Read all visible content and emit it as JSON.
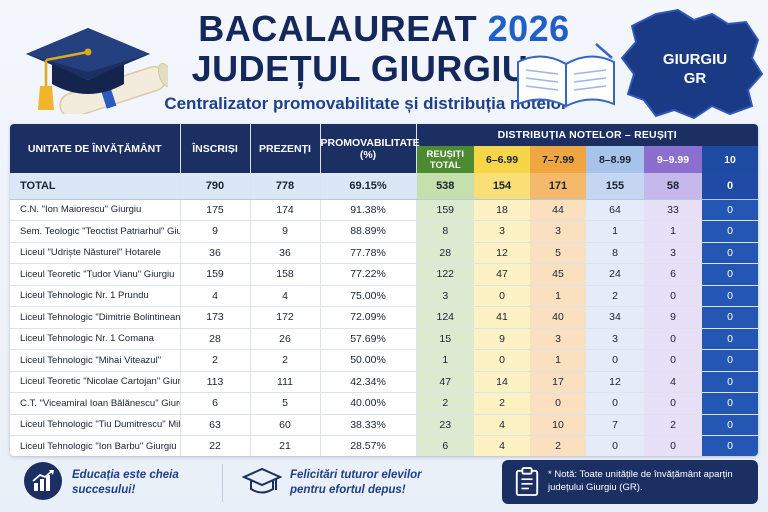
{
  "header": {
    "title_line1": "BACALAUREAT",
    "title_year": "2026",
    "title_line2": "JUDEȚUL GIURGIU",
    "subtitle": "Centralizator promovabilitate și distribuția notelor",
    "region_name": "GIURGIU",
    "region_code": "GR"
  },
  "table": {
    "columns": {
      "unit": "UNITATE DE ÎNVĂȚĂMÂNT",
      "enrolled": "ÎNSCRIȘI",
      "present": "PREZENȚI",
      "pass_rate": "PROMOVABILITATE (%)",
      "distribution": "DISTRIBUȚIA NOTELOR – REUȘIȚI",
      "passed_total": "REUȘIȚI TOTAL",
      "g6": "6–6.99",
      "g7": "7–7.99",
      "g8": "8–8.99",
      "g9": "9–9.99",
      "g10": "10"
    },
    "total": {
      "unit": "TOTAL",
      "enrolled": "790",
      "present": "778",
      "pass_rate": "69.15%",
      "passed": "538",
      "g6": "154",
      "g7": "171",
      "g8": "155",
      "g9": "58",
      "g10": "0"
    },
    "rows": [
      {
        "unit": "C.N. \"Ion Maiorescu\" Giurgiu",
        "enrolled": "175",
        "present": "174",
        "pass_rate": "91.38%",
        "passed": "159",
        "g6": "18",
        "g7": "44",
        "g8": "64",
        "g9": "33",
        "g10": "0"
      },
      {
        "unit": "Sem. Teologic \"Teoctist Patriarhul\" Giurgiu",
        "enrolled": "9",
        "present": "9",
        "pass_rate": "88.89%",
        "passed": "8",
        "g6": "3",
        "g7": "3",
        "g8": "1",
        "g9": "1",
        "g10": "0"
      },
      {
        "unit": "Liceul \"Udriște Năsturel\" Hotarele",
        "enrolled": "36",
        "present": "36",
        "pass_rate": "77.78%",
        "passed": "28",
        "g6": "12",
        "g7": "5",
        "g8": "8",
        "g9": "3",
        "g10": "0"
      },
      {
        "unit": "Liceul Teoretic \"Tudor Vianu\" Giurgiu",
        "enrolled": "159",
        "present": "158",
        "pass_rate": "77.22%",
        "passed": "122",
        "g6": "47",
        "g7": "45",
        "g8": "24",
        "g9": "6",
        "g10": "0"
      },
      {
        "unit": "Liceul Tehnologic Nr. 1 Prundu",
        "enrolled": "4",
        "present": "4",
        "pass_rate": "75.00%",
        "passed": "3",
        "g6": "0",
        "g7": "1",
        "g8": "2",
        "g9": "0",
        "g10": "0"
      },
      {
        "unit": "Liceul Tehnologic \"Dimitrie Bolintineanu\"",
        "enrolled": "173",
        "present": "172",
        "pass_rate": "72.09%",
        "passed": "124",
        "g6": "41",
        "g7": "40",
        "g8": "34",
        "g9": "9",
        "g10": "0"
      },
      {
        "unit": "Liceul Tehnologic Nr. 1 Comana",
        "enrolled": "28",
        "present": "26",
        "pass_rate": "57.69%",
        "passed": "15",
        "g6": "9",
        "g7": "3",
        "g8": "3",
        "g9": "0",
        "g10": "0"
      },
      {
        "unit": "Liceul Tehnologic \"Mihai Viteazul\"",
        "enrolled": "2",
        "present": "2",
        "pass_rate": "50.00%",
        "passed": "1",
        "g6": "0",
        "g7": "1",
        "g8": "0",
        "g9": "0",
        "g10": "0"
      },
      {
        "unit": "Liceul Teoretic \"Nicolae Cartojan\" Giurgiu",
        "enrolled": "113",
        "present": "111",
        "pass_rate": "42.34%",
        "passed": "47",
        "g6": "14",
        "g7": "17",
        "g8": "12",
        "g9": "4",
        "g10": "0"
      },
      {
        "unit": "C.T. \"Viceamiral Ioan Bălănescu\" Giurgiu",
        "enrolled": "6",
        "present": "5",
        "pass_rate": "40.00%",
        "passed": "2",
        "g6": "2",
        "g7": "0",
        "g8": "0",
        "g9": "0",
        "g10": "0"
      },
      {
        "unit": "Liceul Tehnologic \"Tiu Dumitrescu\" Mihăilești",
        "enrolled": "63",
        "present": "60",
        "pass_rate": "38.33%",
        "passed": "23",
        "g6": "4",
        "g7": "10",
        "g8": "7",
        "g9": "2",
        "g10": "0"
      },
      {
        "unit": "Liceul Tehnologic \"Ion Barbu\" Giurgiu",
        "enrolled": "22",
        "present": "21",
        "pass_rate": "28.57%",
        "passed": "6",
        "g6": "4",
        "g7": "2",
        "g8": "0",
        "g9": "0",
        "g10": "0"
      }
    ]
  },
  "footer": {
    "motto": "Educația este cheia succesului!",
    "congrats": "Felicitări tuturor elevilor pentru efortul depus!",
    "note": "* Notă: Toate unitățile de învățământ aparțin județului Giurgiu (GR)."
  },
  "colors": {
    "navy": "#1b2f63",
    "accent_blue": "#1f5fc8",
    "passed_green": "#4c8b32",
    "grade6_yellow": "#f7d548",
    "grade7_orange": "#f0a640",
    "grade8_lightblue": "#a8c3ea",
    "grade9_purple": "#8a6fcf",
    "grade10_blue": "#1d4ba3"
  },
  "icons": {
    "header_left": "graduation-cap-diploma-icon",
    "header_right": "open-book-icon",
    "region": "county-map-icon",
    "footer_motto": "growth-chart-icon",
    "footer_congrats": "graduation-cap-icon",
    "footer_note": "clipboard-icon"
  }
}
